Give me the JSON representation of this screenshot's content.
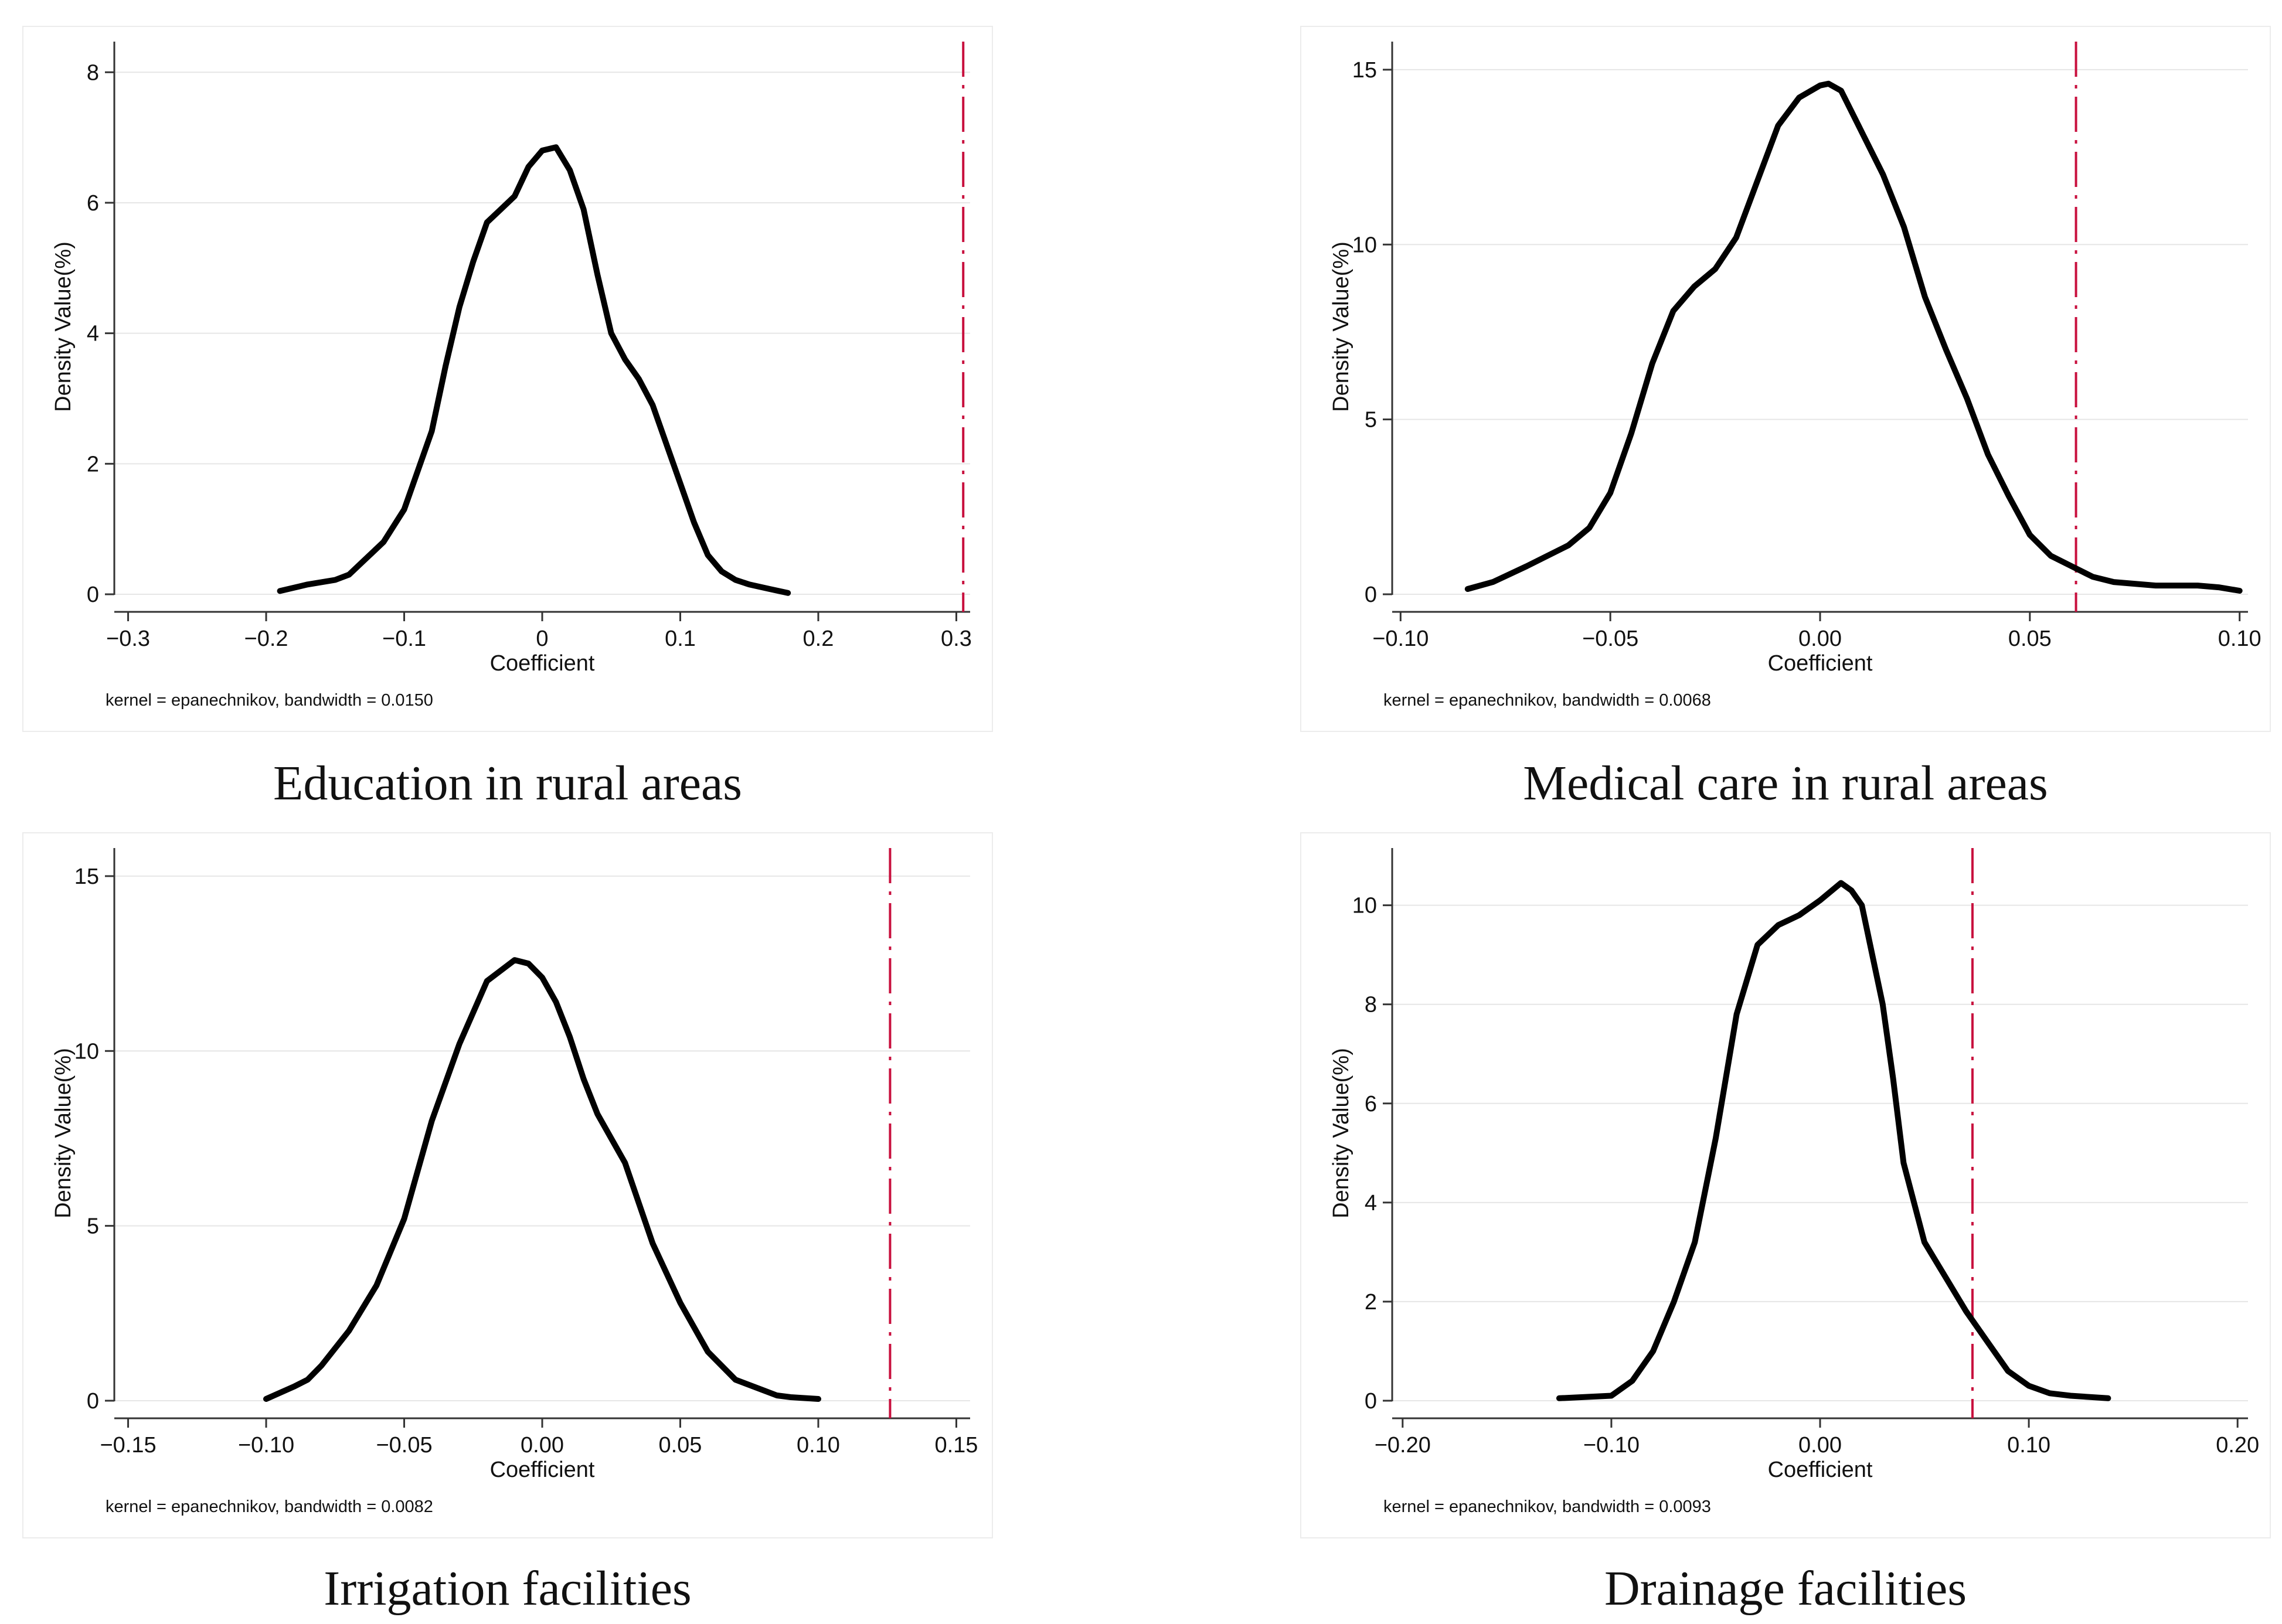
{
  "chart_data": [
    {
      "type": "line",
      "caption": "Education in rural areas",
      "xlabel": "Coefficient",
      "ylabel": "Density Value(%)",
      "note": "kernel = epanechnikov, bandwidth = 0.0150",
      "xlim": [
        -0.31,
        0.31
      ],
      "ylim": [
        0,
        8.2
      ],
      "xticks": [
        -0.3,
        -0.2,
        -0.1,
        0,
        0.1,
        0.2,
        0.3
      ],
      "xtick_labels": [
        "−0.3",
        "−0.2",
        "−0.1",
        "0",
        "0.1",
        "0.2",
        "0.3"
      ],
      "yticks": [
        0,
        2,
        4,
        6,
        8
      ],
      "ytick_labels": [
        "0",
        "2",
        "4",
        "6",
        "8"
      ],
      "reference_line_x": 0.305,
      "x": [
        -0.19,
        -0.17,
        -0.15,
        -0.14,
        -0.13,
        -0.115,
        -0.1,
        -0.08,
        -0.07,
        -0.06,
        -0.05,
        -0.04,
        -0.03,
        -0.02,
        -0.01,
        0,
        0.01,
        0.02,
        0.03,
        0.04,
        0.05,
        0.06,
        0.07,
        0.08,
        0.09,
        0.1,
        0.11,
        0.12,
        0.13,
        0.14,
        0.15,
        0.165,
        0.178
      ],
      "y": [
        0.05,
        0.15,
        0.22,
        0.3,
        0.5,
        0.8,
        1.3,
        2.5,
        3.5,
        4.4,
        5.1,
        5.7,
        5.9,
        6.1,
        6.55,
        6.8,
        6.85,
        6.5,
        5.9,
        4.9,
        4.0,
        3.6,
        3.3,
        2.9,
        2.3,
        1.7,
        1.1,
        0.6,
        0.35,
        0.22,
        0.15,
        0.08,
        0.02
      ]
    },
    {
      "type": "line",
      "caption": "Medical care in rural areas",
      "xlabel": "Coefficient",
      "ylabel": "Density Value(%)",
      "note": "kernel = epanechnikov, bandwidth = 0.0068",
      "xlim": [
        -0.102,
        0.102
      ],
      "ylim": [
        0,
        15.3
      ],
      "xticks": [
        -0.1,
        -0.05,
        0,
        0.05,
        0.1
      ],
      "xtick_labels": [
        "−0.10",
        "−0.05",
        "0.00",
        "0.05",
        "0.10"
      ],
      "yticks": [
        0,
        5,
        10,
        15
      ],
      "ytick_labels": [
        "0",
        "5",
        "10",
        "15"
      ],
      "reference_line_x": 0.061,
      "x": [
        -0.084,
        -0.078,
        -0.07,
        -0.06,
        -0.055,
        -0.05,
        -0.045,
        -0.04,
        -0.035,
        -0.03,
        -0.025,
        -0.02,
        -0.015,
        -0.01,
        -0.005,
        0,
        0.002,
        0.005,
        0.01,
        0.015,
        0.02,
        0.025,
        0.03,
        0.035,
        0.04,
        0.045,
        0.05,
        0.055,
        0.06,
        0.065,
        0.07,
        0.075,
        0.08,
        0.085,
        0.09,
        0.095,
        0.1
      ],
      "y": [
        0.15,
        0.35,
        0.8,
        1.4,
        1.9,
        2.9,
        4.6,
        6.6,
        8.1,
        8.8,
        9.3,
        10.2,
        11.8,
        13.4,
        14.2,
        14.55,
        14.6,
        14.4,
        13.2,
        12.0,
        10.5,
        8.5,
        7.0,
        5.6,
        4.0,
        2.8,
        1.7,
        1.1,
        0.8,
        0.5,
        0.35,
        0.3,
        0.25,
        0.25,
        0.25,
        0.2,
        0.1
      ]
    },
    {
      "type": "line",
      "caption": "Irrigation facilities",
      "xlabel": "Coefficient",
      "ylabel": "Density Value(%)",
      "note": "kernel = epanechnikov, bandwidth = 0.0082",
      "xlim": [
        -0.155,
        0.155
      ],
      "ylim": [
        0,
        15.3
      ],
      "xticks": [
        -0.15,
        -0.1,
        -0.05,
        0,
        0.05,
        0.1,
        0.15
      ],
      "xtick_labels": [
        "−0.15",
        "−0.10",
        "−0.05",
        "0.00",
        "0.05",
        "0.10",
        "0.15"
      ],
      "yticks": [
        0,
        5,
        10,
        15
      ],
      "ytick_labels": [
        "0",
        "5",
        "10",
        "15"
      ],
      "reference_line_x": 0.126,
      "x": [
        -0.1,
        -0.09,
        -0.085,
        -0.08,
        -0.07,
        -0.06,
        -0.05,
        -0.04,
        -0.03,
        -0.02,
        -0.01,
        -0.005,
        0,
        0.005,
        0.01,
        0.015,
        0.02,
        0.03,
        0.04,
        0.05,
        0.06,
        0.07,
        0.08,
        0.085,
        0.09,
        0.1
      ],
      "y": [
        0.05,
        0.4,
        0.6,
        1.0,
        2.0,
        3.3,
        5.2,
        8.0,
        10.2,
        12.0,
        12.6,
        12.5,
        12.1,
        11.4,
        10.4,
        9.2,
        8.2,
        6.8,
        4.5,
        2.8,
        1.4,
        0.6,
        0.3,
        0.15,
        0.1,
        0.05
      ]
    },
    {
      "type": "line",
      "caption": "Drainage facilities",
      "xlabel": "Coefficient",
      "ylabel": "Density Value(%)",
      "note": "kernel = epanechnikov, bandwidth = 0.0093",
      "xlim": [
        -0.205,
        0.205
      ],
      "ylim": [
        0,
        10.8
      ],
      "xticks": [
        -0.2,
        -0.1,
        0,
        0.1,
        0.2
      ],
      "xtick_labels": [
        "−0.20",
        "−0.10",
        "0.00",
        "0.10",
        "0.20"
      ],
      "yticks": [
        0,
        2,
        4,
        6,
        8,
        10
      ],
      "ytick_labels": [
        "0",
        "2",
        "4",
        "6",
        "8",
        "10"
      ],
      "reference_line_x": 0.073,
      "x": [
        -0.125,
        -0.1,
        -0.09,
        -0.08,
        -0.07,
        -0.06,
        -0.05,
        -0.04,
        -0.03,
        -0.02,
        -0.01,
        0,
        0.01,
        0.015,
        0.02,
        0.025,
        0.03,
        0.035,
        0.04,
        0.05,
        0.06,
        0.07,
        0.08,
        0.09,
        0.1,
        0.11,
        0.12,
        0.138
      ],
      "y": [
        0.05,
        0.1,
        0.4,
        1.0,
        2.0,
        3.2,
        5.3,
        7.8,
        9.2,
        9.6,
        9.8,
        10.1,
        10.45,
        10.3,
        10.0,
        9.0,
        8.0,
        6.5,
        4.8,
        3.2,
        2.5,
        1.8,
        1.2,
        0.6,
        0.3,
        0.15,
        0.1,
        0.05
      ]
    }
  ]
}
